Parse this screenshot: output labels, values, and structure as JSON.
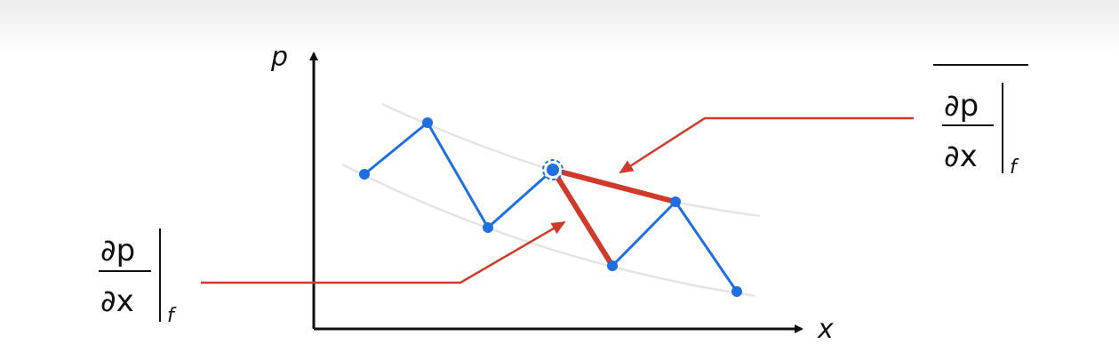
{
  "axes": {
    "x_label": "x",
    "y_label": "p"
  },
  "labels": {
    "left": {
      "numerator": "∂p",
      "denominator": "∂x",
      "subscript": "f"
    },
    "right": {
      "numerator": "∂p",
      "denominator": "∂x",
      "subscript": "f",
      "overline": true
    }
  },
  "colors": {
    "series": "#1f6fe0",
    "highlight": "#d13a2a",
    "arrow": "#d13a2a",
    "axis": "#111111",
    "guide": "#e4e4e4"
  }
}
